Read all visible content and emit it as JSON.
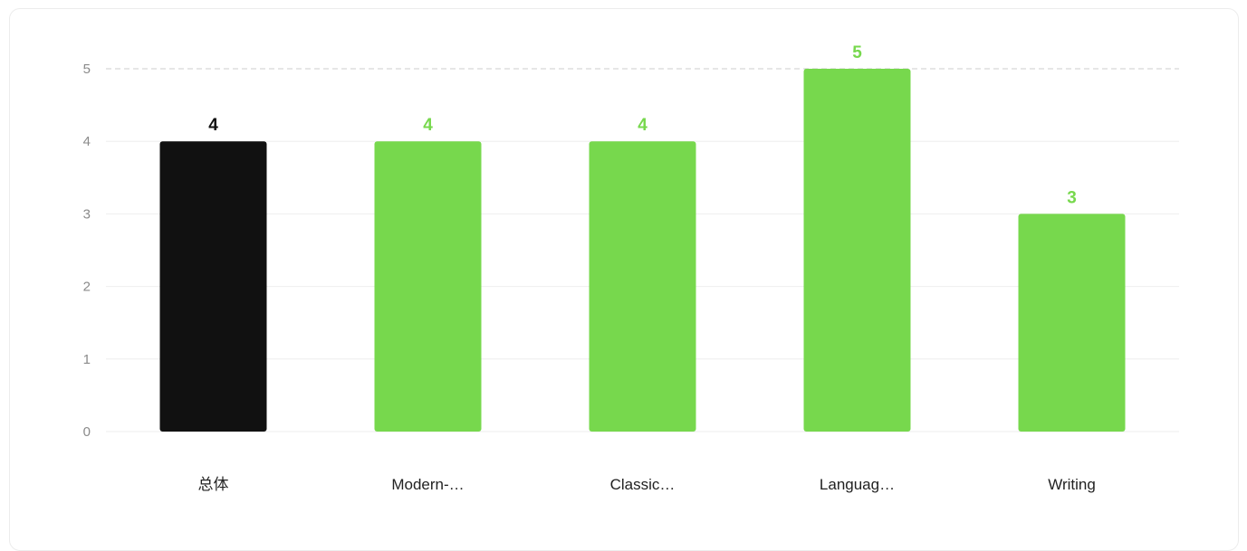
{
  "chart_data": {
    "type": "bar",
    "categories": [
      "总体",
      "Modern-…",
      "Classic…",
      "Languag…",
      "Writing"
    ],
    "values": [
      4,
      4,
      4,
      5,
      3
    ],
    "ylim": [
      0,
      5
    ],
    "yticks": [
      0,
      1,
      2,
      3,
      4,
      5
    ],
    "grid": true,
    "legend": "none",
    "title": "",
    "xlabel": "",
    "ylabel": "",
    "bar_colors": [
      "#111111",
      "#77d84d",
      "#77d84d",
      "#77d84d",
      "#77d84d"
    ],
    "value_label_colors": [
      "#111111",
      "#77d84d",
      "#77d84d",
      "#77d84d",
      "#77d84d"
    ],
    "grid_color": "#eeeeee",
    "max_line_color": "#cccccc",
    "tick_color": "#8a8a8a"
  }
}
